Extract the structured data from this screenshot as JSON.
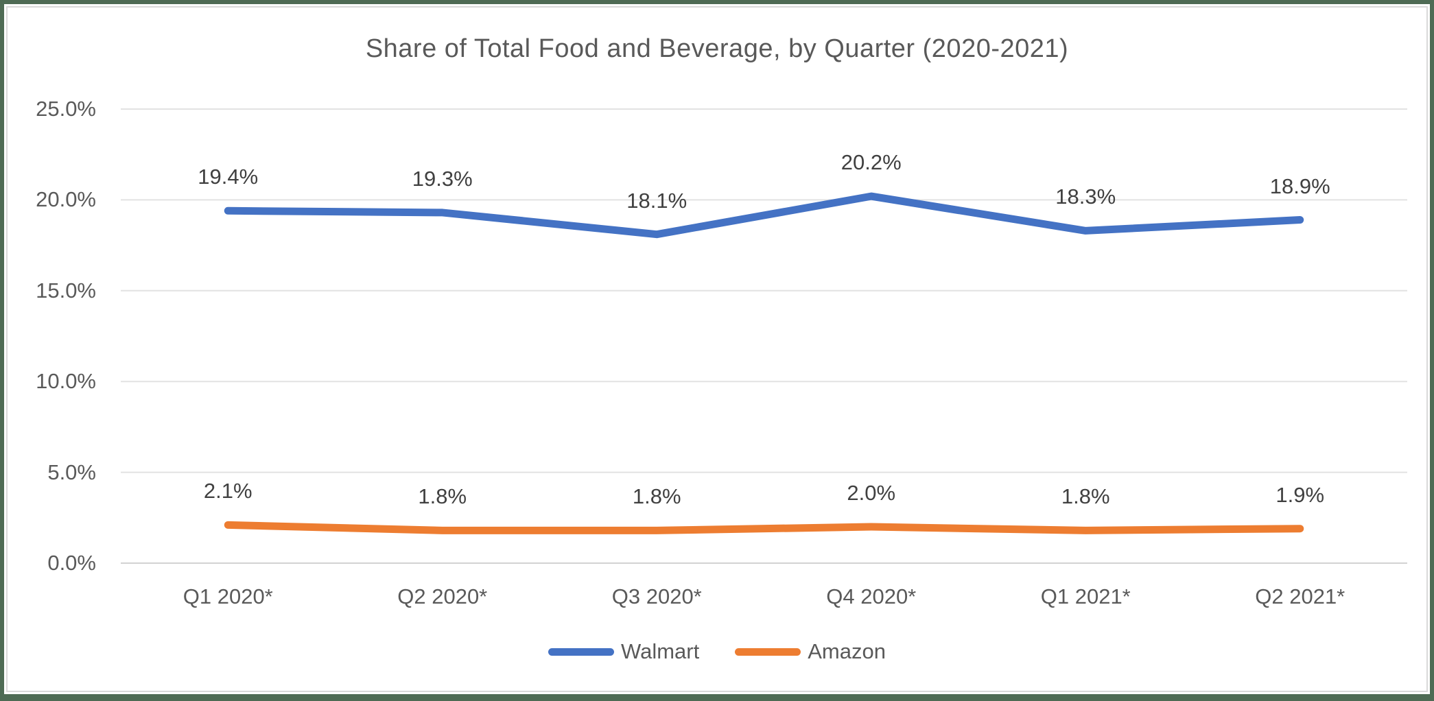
{
  "chart_data": {
    "type": "line",
    "title": "Share of Total Food and Beverage, by Quarter (2020-2021)",
    "categories": [
      "Q1 2020*",
      "Q2 2020*",
      "Q3 2020*",
      "Q4 2020*",
      "Q1 2021*",
      "Q2 2021*"
    ],
    "series": [
      {
        "name": "Walmart",
        "color": "#4472C4",
        "values": [
          19.4,
          19.3,
          18.1,
          20.2,
          18.3,
          18.9
        ],
        "labels": [
          "19.4%",
          "19.3%",
          "18.1%",
          "20.2%",
          "18.3%",
          "18.9%"
        ]
      },
      {
        "name": "Amazon",
        "color": "#ED7D31",
        "values": [
          2.1,
          1.8,
          1.8,
          2.0,
          1.8,
          1.9
        ],
        "labels": [
          "2.1%",
          "1.8%",
          "1.8%",
          "2.0%",
          "1.8%",
          "1.9%"
        ]
      }
    ],
    "y_axis": {
      "tick_values": [
        25,
        20,
        15,
        10,
        5,
        0
      ],
      "tick_labels": [
        "25.0%",
        "20.0%",
        "15.0%",
        "10.0%",
        "5.0%",
        "0.0%"
      ],
      "min": 0,
      "max": 25
    },
    "grid": "horizontal",
    "legend_position": "bottom",
    "colors": {
      "gridline": "#e2e2e2",
      "axis_line": "#d2d2d2",
      "title_text": "#595959",
      "axis_text": "#595959",
      "data_label_text": "#404040",
      "outer_border_green": "#4e6b54",
      "inner_frame_gray": "#d9d9d9"
    }
  }
}
